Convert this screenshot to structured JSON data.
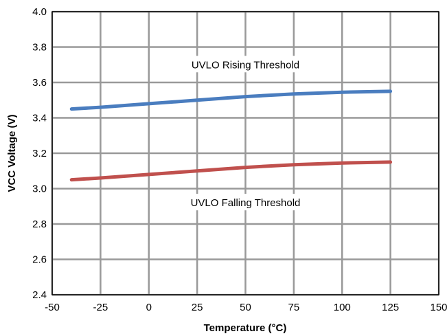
{
  "chart_data": {
    "type": "line",
    "xlabel": "Temperature (°C)",
    "ylabel": "VCC Voltage (V)",
    "xlim": [
      -50,
      150
    ],
    "ylim": [
      2.4,
      4.0
    ],
    "x_ticks": [
      -50,
      -25,
      0,
      25,
      50,
      75,
      100,
      125,
      150
    ],
    "y_ticks": [
      "2.4",
      "2.6",
      "2.8",
      "3.0",
      "3.2",
      "3.4",
      "3.6",
      "3.8",
      "4.0"
    ],
    "grid": true,
    "series": [
      {
        "color": "#4a7dbf",
        "x": [
          -40,
          -25,
          0,
          25,
          50,
          75,
          100,
          125
        ],
        "y": [
          3.45,
          3.46,
          3.48,
          3.5,
          3.52,
          3.535,
          3.545,
          3.55
        ]
      },
      {
        "color": "#c0504d",
        "x": [
          -40,
          -25,
          0,
          25,
          50,
          75,
          100,
          125
        ],
        "y": [
          3.05,
          3.06,
          3.08,
          3.1,
          3.12,
          3.135,
          3.145,
          3.15
        ]
      }
    ],
    "annotations": [
      {
        "text": "UVLO Rising Threshold",
        "x": 50,
        "y": 3.7
      },
      {
        "text": "UVLO Falling Threshold",
        "x": 50,
        "y": 2.92
      }
    ]
  }
}
